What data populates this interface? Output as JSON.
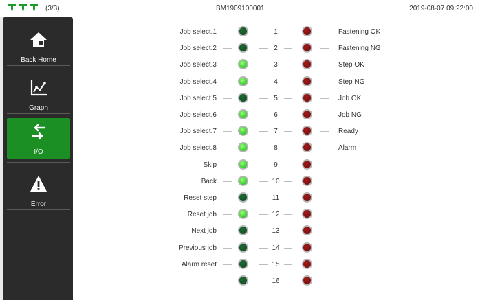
{
  "header": {
    "page_count": "(3/3)",
    "serial": "BM1909100001",
    "datetime": "2019-08-07 09:22:00",
    "tool_icons": [
      "tool-icon",
      "tool-icon",
      "tool-icon"
    ]
  },
  "sidebar": {
    "items": [
      {
        "label": "Back Home",
        "icon": "home-icon",
        "active": false
      },
      {
        "label": "Graph",
        "icon": "graph-icon",
        "active": false
      },
      {
        "label": "I/O",
        "icon": "io-arrows-icon",
        "active": true
      },
      {
        "label": "Error",
        "icon": "warning-icon",
        "active": false
      }
    ]
  },
  "io": {
    "rows": [
      {
        "index": "1",
        "input_label": "Job select.1",
        "input_on": false,
        "output_label": "Fastening OK",
        "output_on": false
      },
      {
        "index": "2",
        "input_label": "Job select.2",
        "input_on": false,
        "output_label": "Fastening NG",
        "output_on": false
      },
      {
        "index": "3",
        "input_label": "Job select.3",
        "input_on": true,
        "output_label": "Step OK",
        "output_on": false
      },
      {
        "index": "4",
        "input_label": "Job select.4",
        "input_on": true,
        "output_label": "Step NG",
        "output_on": false
      },
      {
        "index": "5",
        "input_label": "Job select.5",
        "input_on": false,
        "output_label": "Job OK",
        "output_on": false
      },
      {
        "index": "6",
        "input_label": "Job select.6",
        "input_on": true,
        "output_label": "Job NG",
        "output_on": false
      },
      {
        "index": "7",
        "input_label": "Job select.7",
        "input_on": true,
        "output_label": "Ready",
        "output_on": false
      },
      {
        "index": "8",
        "input_label": "Job select.8",
        "input_on": true,
        "output_label": "Alarm",
        "output_on": false
      },
      {
        "index": "9",
        "input_label": "Skip",
        "input_on": true,
        "output_label": "",
        "output_on": false
      },
      {
        "index": "10",
        "input_label": "Back",
        "input_on": true,
        "output_label": "",
        "output_on": false
      },
      {
        "index": "11",
        "input_label": "Reset step",
        "input_on": false,
        "output_label": "",
        "output_on": false
      },
      {
        "index": "12",
        "input_label": "Reset job",
        "input_on": true,
        "output_label": "",
        "output_on": false
      },
      {
        "index": "13",
        "input_label": "Next job",
        "input_on": false,
        "output_label": "",
        "output_on": false
      },
      {
        "index": "14",
        "input_label": "Previous job",
        "input_on": false,
        "output_label": "",
        "output_on": false
      },
      {
        "index": "15",
        "input_label": "Alarm reset",
        "input_on": false,
        "output_label": "",
        "output_on": false
      },
      {
        "index": "16",
        "input_label": "",
        "input_on": false,
        "output_label": "",
        "output_on": false
      }
    ]
  },
  "colors": {
    "active_nav": "#1c8f24",
    "sidebar_bg": "#2b2b2b",
    "input_on": "#46d63a",
    "input_off": "#145225",
    "output_off": "#7d0f0f"
  }
}
